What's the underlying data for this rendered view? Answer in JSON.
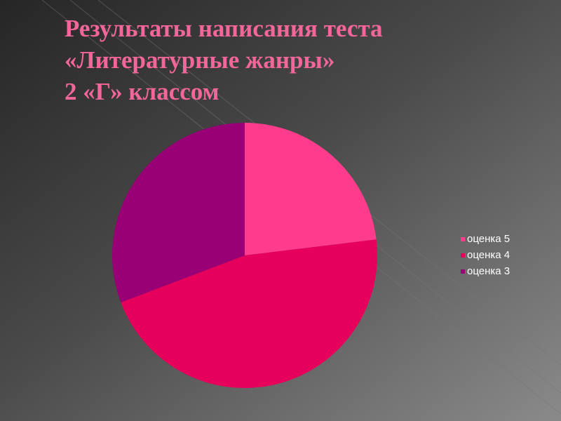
{
  "chart_data": {
    "type": "pie",
    "title": [
      "Результаты написания теста",
      "«Литературные жанры»",
      "2 «Г» классом"
    ],
    "categories": [
      "оценка 5",
      "оценка 4",
      "оценка 3"
    ],
    "values": [
      6,
      12,
      8
    ],
    "colors": [
      "#ff3c8c",
      "#e6005c",
      "#990075"
    ],
    "legend": "right"
  }
}
